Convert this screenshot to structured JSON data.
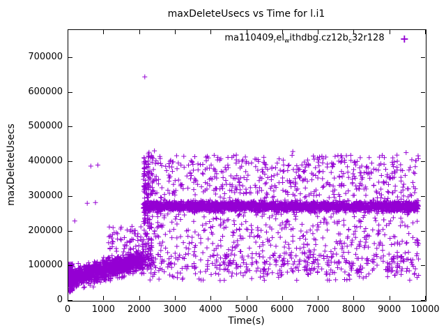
{
  "chart": {
    "title": "maxDeleteUsecs vs Time for l.i1",
    "xlabel": "Time(s)",
    "ylabel": "maxDeleteUsecs",
    "legend": {
      "plain": "ma110409_rel_withdbg.cz12b_c32r128",
      "segments": [
        {
          "text": "ma110409"
        },
        {
          "text": "r",
          "sub": true
        },
        {
          "text": "el"
        },
        {
          "text": "w",
          "sub": true
        },
        {
          "text": "ithdbg.cz12b"
        },
        {
          "text": "c",
          "sub": true
        },
        {
          "text": "32r128"
        }
      ],
      "marker_glyph": "+"
    },
    "marker_color": "#9400d3",
    "axis_color": "#000000",
    "background_color": "#ffffff"
  },
  "chart_data": {
    "type": "scatter",
    "title": "maxDeleteUsecs vs Time for l.i1",
    "xlabel": "Time(s)",
    "ylabel": "maxDeleteUsecs",
    "xlim": [
      0,
      10000
    ],
    "ylim": [
      0,
      780000
    ],
    "xticks": [
      0,
      1000,
      2000,
      3000,
      4000,
      5000,
      6000,
      7000,
      8000,
      9000,
      10000
    ],
    "yticks": [
      0,
      100000,
      200000,
      300000,
      400000,
      500000,
      600000,
      700000
    ],
    "grid": false,
    "legend_position": "top-right-inside",
    "series": [
      {
        "name": "ma110409_rel_withdbg.cz12b_c32r128",
        "color": "#9400d3",
        "marker": "plus",
        "marker_size": 7,
        "summary": "Warmup phase 0-2100s: dense band ramping from ~60000 to ~120000 usecs with startup spread 25000-110000 near t=0 and sparse tail points 140000-215000. Steady state 2100-9800s: dense horizontal band ~265000-285000 (center ~272000), low cluster ~60000-170000 (center ~105000), wide scatter 150000-425000, plus extreme outlier ~645000 at t~2140.",
        "clusters": [
          {
            "kind": "ramp",
            "x_range": [
              10,
              2100
            ],
            "count": 1300,
            "y_start": 62000,
            "y_end": 118000,
            "sd": 14000,
            "y_min": 35000
          },
          {
            "kind": "uniform",
            "x_range": [
              0,
              120
            ],
            "count": 110,
            "y_range": [
              25000,
              110000
            ]
          },
          {
            "kind": "uniform",
            "x_range": [
              1100,
              2100
            ],
            "count": 55,
            "y_range": [
              140000,
              215000
            ]
          },
          {
            "kind": "uniform",
            "x_range": [
              2100,
              2360
            ],
            "count": 160,
            "y_range": [
              90000,
              430000
            ]
          },
          {
            "kind": "normal",
            "x_range": [
              2100,
              9800
            ],
            "count": 2600,
            "mean": 272000,
            "sd": 7000,
            "clamp": [
              248000,
              300000
            ]
          },
          {
            "kind": "normal",
            "x_range": [
              2100,
              9800
            ],
            "count": 460,
            "mean": 105000,
            "sd": 25000,
            "clamp": [
              58000,
              170000
            ]
          },
          {
            "kind": "uniform",
            "x_range": [
              2100,
              9800
            ],
            "count": 520,
            "y_range": [
              295000,
              420000
            ]
          },
          {
            "kind": "uniform",
            "x_range": [
              2100,
              9800
            ],
            "count": 330,
            "y_range": [
              150000,
              265000
            ]
          }
        ],
        "outliers": [
          [
            2140,
            645000
          ],
          [
            2410,
            432000
          ],
          [
            6280,
            430000
          ],
          [
            9450,
            427000
          ],
          [
            825,
            391000
          ],
          [
            630,
            388000
          ],
          [
            760,
            283000
          ],
          [
            530,
            281000
          ],
          [
            180,
            230000
          ],
          [
            4700,
            420000
          ]
        ]
      }
    ]
  }
}
